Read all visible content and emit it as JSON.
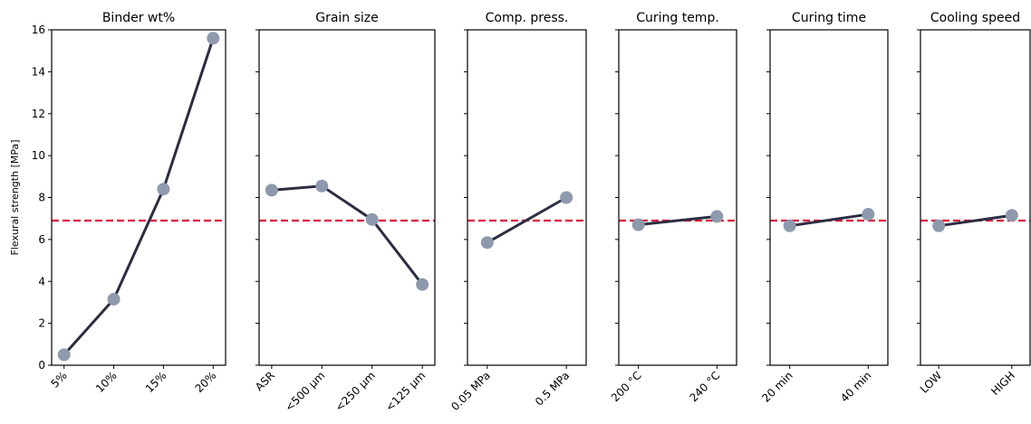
{
  "chart_data": [
    {
      "type": "line",
      "title": "Binder wt%",
      "y_label": "Flexural strength [MPa]",
      "categories": [
        "5%",
        "10%",
        "15%",
        "20%"
      ],
      "values": [
        0.5,
        3.15,
        8.4,
        15.6
      ],
      "ylim": [
        0,
        16
      ],
      "yticks": [
        0,
        2,
        4,
        6,
        8,
        10,
        12,
        14,
        16
      ],
      "color": "#2b2d42",
      "marker_color": "#8e99ad",
      "hline": 6.9,
      "hline_color": "#dc143c"
    },
    {
      "type": "line",
      "title": "Grain size",
      "categories": [
        "ASR",
        "<500 μm",
        "<250 μm",
        "<125 μm"
      ],
      "values": [
        8.35,
        8.55,
        6.95,
        3.85
      ],
      "ylim": [
        0,
        16
      ],
      "yticks": [
        0,
        2,
        4,
        6,
        8,
        10,
        12,
        14,
        16
      ],
      "color": "#2b2d42",
      "marker_color": "#8e99ad",
      "hline": 6.9,
      "hline_color": "#dc143c"
    },
    {
      "type": "line",
      "title": "Comp. press.",
      "categories": [
        "0.05 MPa",
        "0.5 MPa"
      ],
      "values": [
        5.85,
        8.0
      ],
      "ylim": [
        0,
        16
      ],
      "yticks": [
        0,
        2,
        4,
        6,
        8,
        10,
        12,
        14,
        16
      ],
      "color": "#2b2d42",
      "marker_color": "#8e99ad",
      "hline": 6.9,
      "hline_color": "#dc143c"
    },
    {
      "type": "line",
      "title": "Curing temp.",
      "categories": [
        "200 °C",
        "240 °C"
      ],
      "values": [
        6.7,
        7.1
      ],
      "ylim": [
        0,
        16
      ],
      "yticks": [
        0,
        2,
        4,
        6,
        8,
        10,
        12,
        14,
        16
      ],
      "color": "#2b2d42",
      "marker_color": "#8e99ad",
      "hline": 6.9,
      "hline_color": "#dc143c"
    },
    {
      "type": "line",
      "title": "Curing time",
      "categories": [
        "20 min",
        "40 min"
      ],
      "values": [
        6.65,
        7.2
      ],
      "ylim": [
        0,
        16
      ],
      "yticks": [
        0,
        2,
        4,
        6,
        8,
        10,
        12,
        14,
        16
      ],
      "color": "#2b2d42",
      "marker_color": "#8e99ad",
      "hline": 6.9,
      "hline_color": "#dc143c"
    },
    {
      "type": "line",
      "title": "Cooling speed",
      "categories": [
        "LOW",
        "HIGH"
      ],
      "values": [
        6.65,
        7.15
      ],
      "ylim": [
        0,
        16
      ],
      "yticks": [
        0,
        2,
        4,
        6,
        8,
        10,
        12,
        14,
        16
      ],
      "color": "#2b2d42",
      "marker_color": "#8e99ad",
      "hline": 6.9,
      "hline_color": "#dc143c"
    }
  ]
}
